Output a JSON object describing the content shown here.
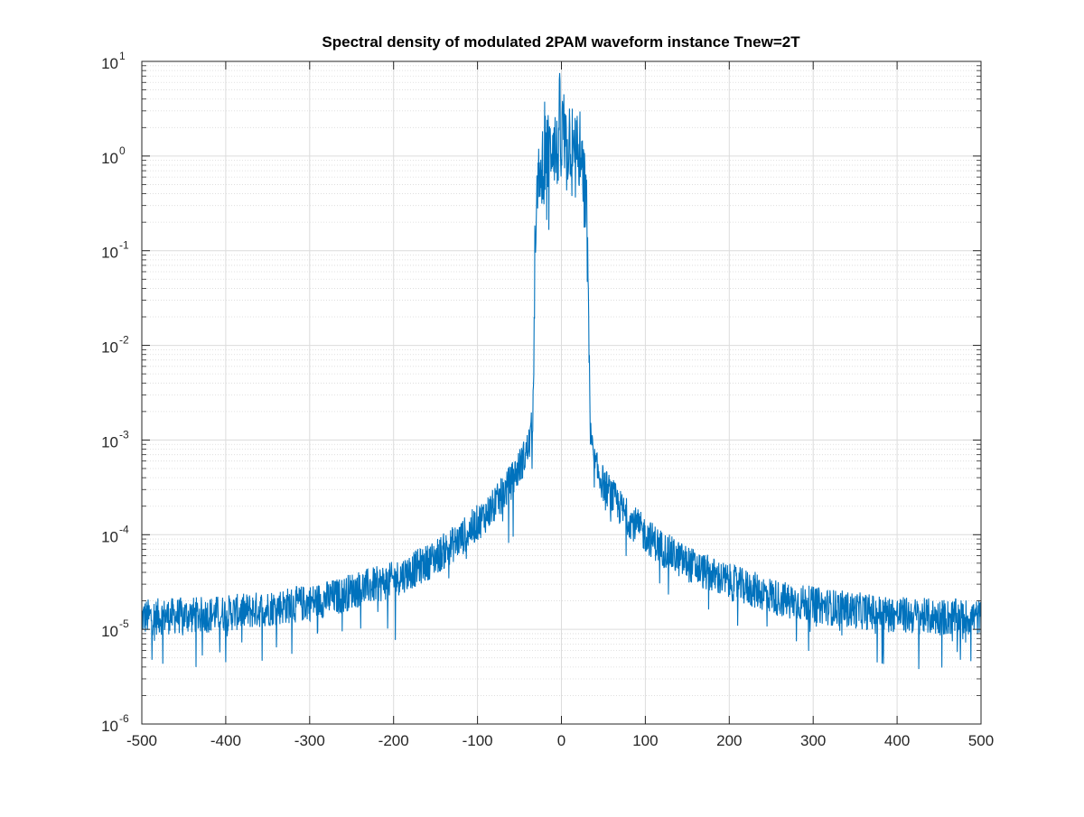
{
  "chart_data": {
    "type": "line",
    "title": "Spectral density of modulated 2PAM waveform instance Tnew=2T",
    "xlabel": "",
    "ylabel": "",
    "xlim": [
      -500,
      500
    ],
    "ylim": [
      1e-06,
      10
    ],
    "yscale": "log",
    "grid": true,
    "minor_grid": true,
    "x_ticks": [
      -500,
      -400,
      -300,
      -200,
      -100,
      0,
      100,
      200,
      300,
      400,
      500
    ],
    "x_tick_labels": [
      "-500",
      "-400",
      "-300",
      "-200",
      "-100",
      "0",
      "100",
      "200",
      "300",
      "400",
      "500"
    ],
    "y_ticks": [
      {
        "base": "10",
        "exp": "1",
        "value": 10
      },
      {
        "base": "10",
        "exp": "0",
        "value": 1
      },
      {
        "base": "10",
        "exp": "-1",
        "value": 0.1
      },
      {
        "base": "10",
        "exp": "-2",
        "value": 0.01
      },
      {
        "base": "10",
        "exp": "-3",
        "value": 0.001
      },
      {
        "base": "10",
        "exp": "-4",
        "value": 0.0001
      },
      {
        "base": "10",
        "exp": "-5",
        "value": 1e-05
      },
      {
        "base": "10",
        "exp": "-6",
        "value": 1e-06
      }
    ],
    "series": [
      {
        "color": "#0072BD",
        "x": [
          -500,
          -460,
          -420,
          -380,
          -340,
          -300,
          -260,
          -250,
          -220,
          -200,
          -180,
          -160,
          -140,
          -120,
          -100,
          -80,
          -70,
          -60,
          -50,
          -45,
          -40,
          -37,
          -35,
          -34,
          -33,
          -32,
          -30,
          -25,
          -20,
          -15,
          -10,
          -5,
          -2,
          0,
          2,
          5,
          10,
          15,
          20,
          25,
          30,
          32,
          33,
          34,
          35,
          37,
          40,
          45,
          50,
          60,
          70,
          80,
          100,
          120,
          140,
          160,
          180,
          200,
          220,
          250,
          260,
          300,
          340,
          380,
          420,
          460,
          500
        ],
        "y": [
          1.4e-05,
          1.45e-05,
          1.5e-05,
          1.6e-05,
          1.8e-05,
          2e-05,
          2.4e-05,
          2.7e-05,
          3.1e-05,
          3.5e-05,
          4.3e-05,
          5.3e-05,
          7e-05,
          9.5e-05,
          0.00014,
          0.00021,
          0.00028,
          0.00038,
          0.00055,
          0.00067,
          0.00085,
          0.0011,
          0.0015,
          0.002,
          0.01,
          0.06,
          0.25,
          0.8,
          1.5,
          1.0,
          2.0,
          1.0,
          3.0,
          1.0,
          3.0,
          1.0,
          2.0,
          1.0,
          1.5,
          0.8,
          0.25,
          0.06,
          0.01,
          0.002,
          0.0011,
          0.0008,
          0.00055,
          0.00045,
          0.00036,
          0.00027,
          0.0002,
          0.000155,
          0.000105,
          7.5e-05,
          5.8e-05,
          4.7e-05,
          3.9e-05,
          3.3e-05,
          2.9e-05,
          2.4e-05,
          2.2e-05,
          1.9e-05,
          1.7e-05,
          1.55e-05,
          1.45e-05,
          1.4e-05,
          1.4e-05
        ]
      }
    ]
  }
}
